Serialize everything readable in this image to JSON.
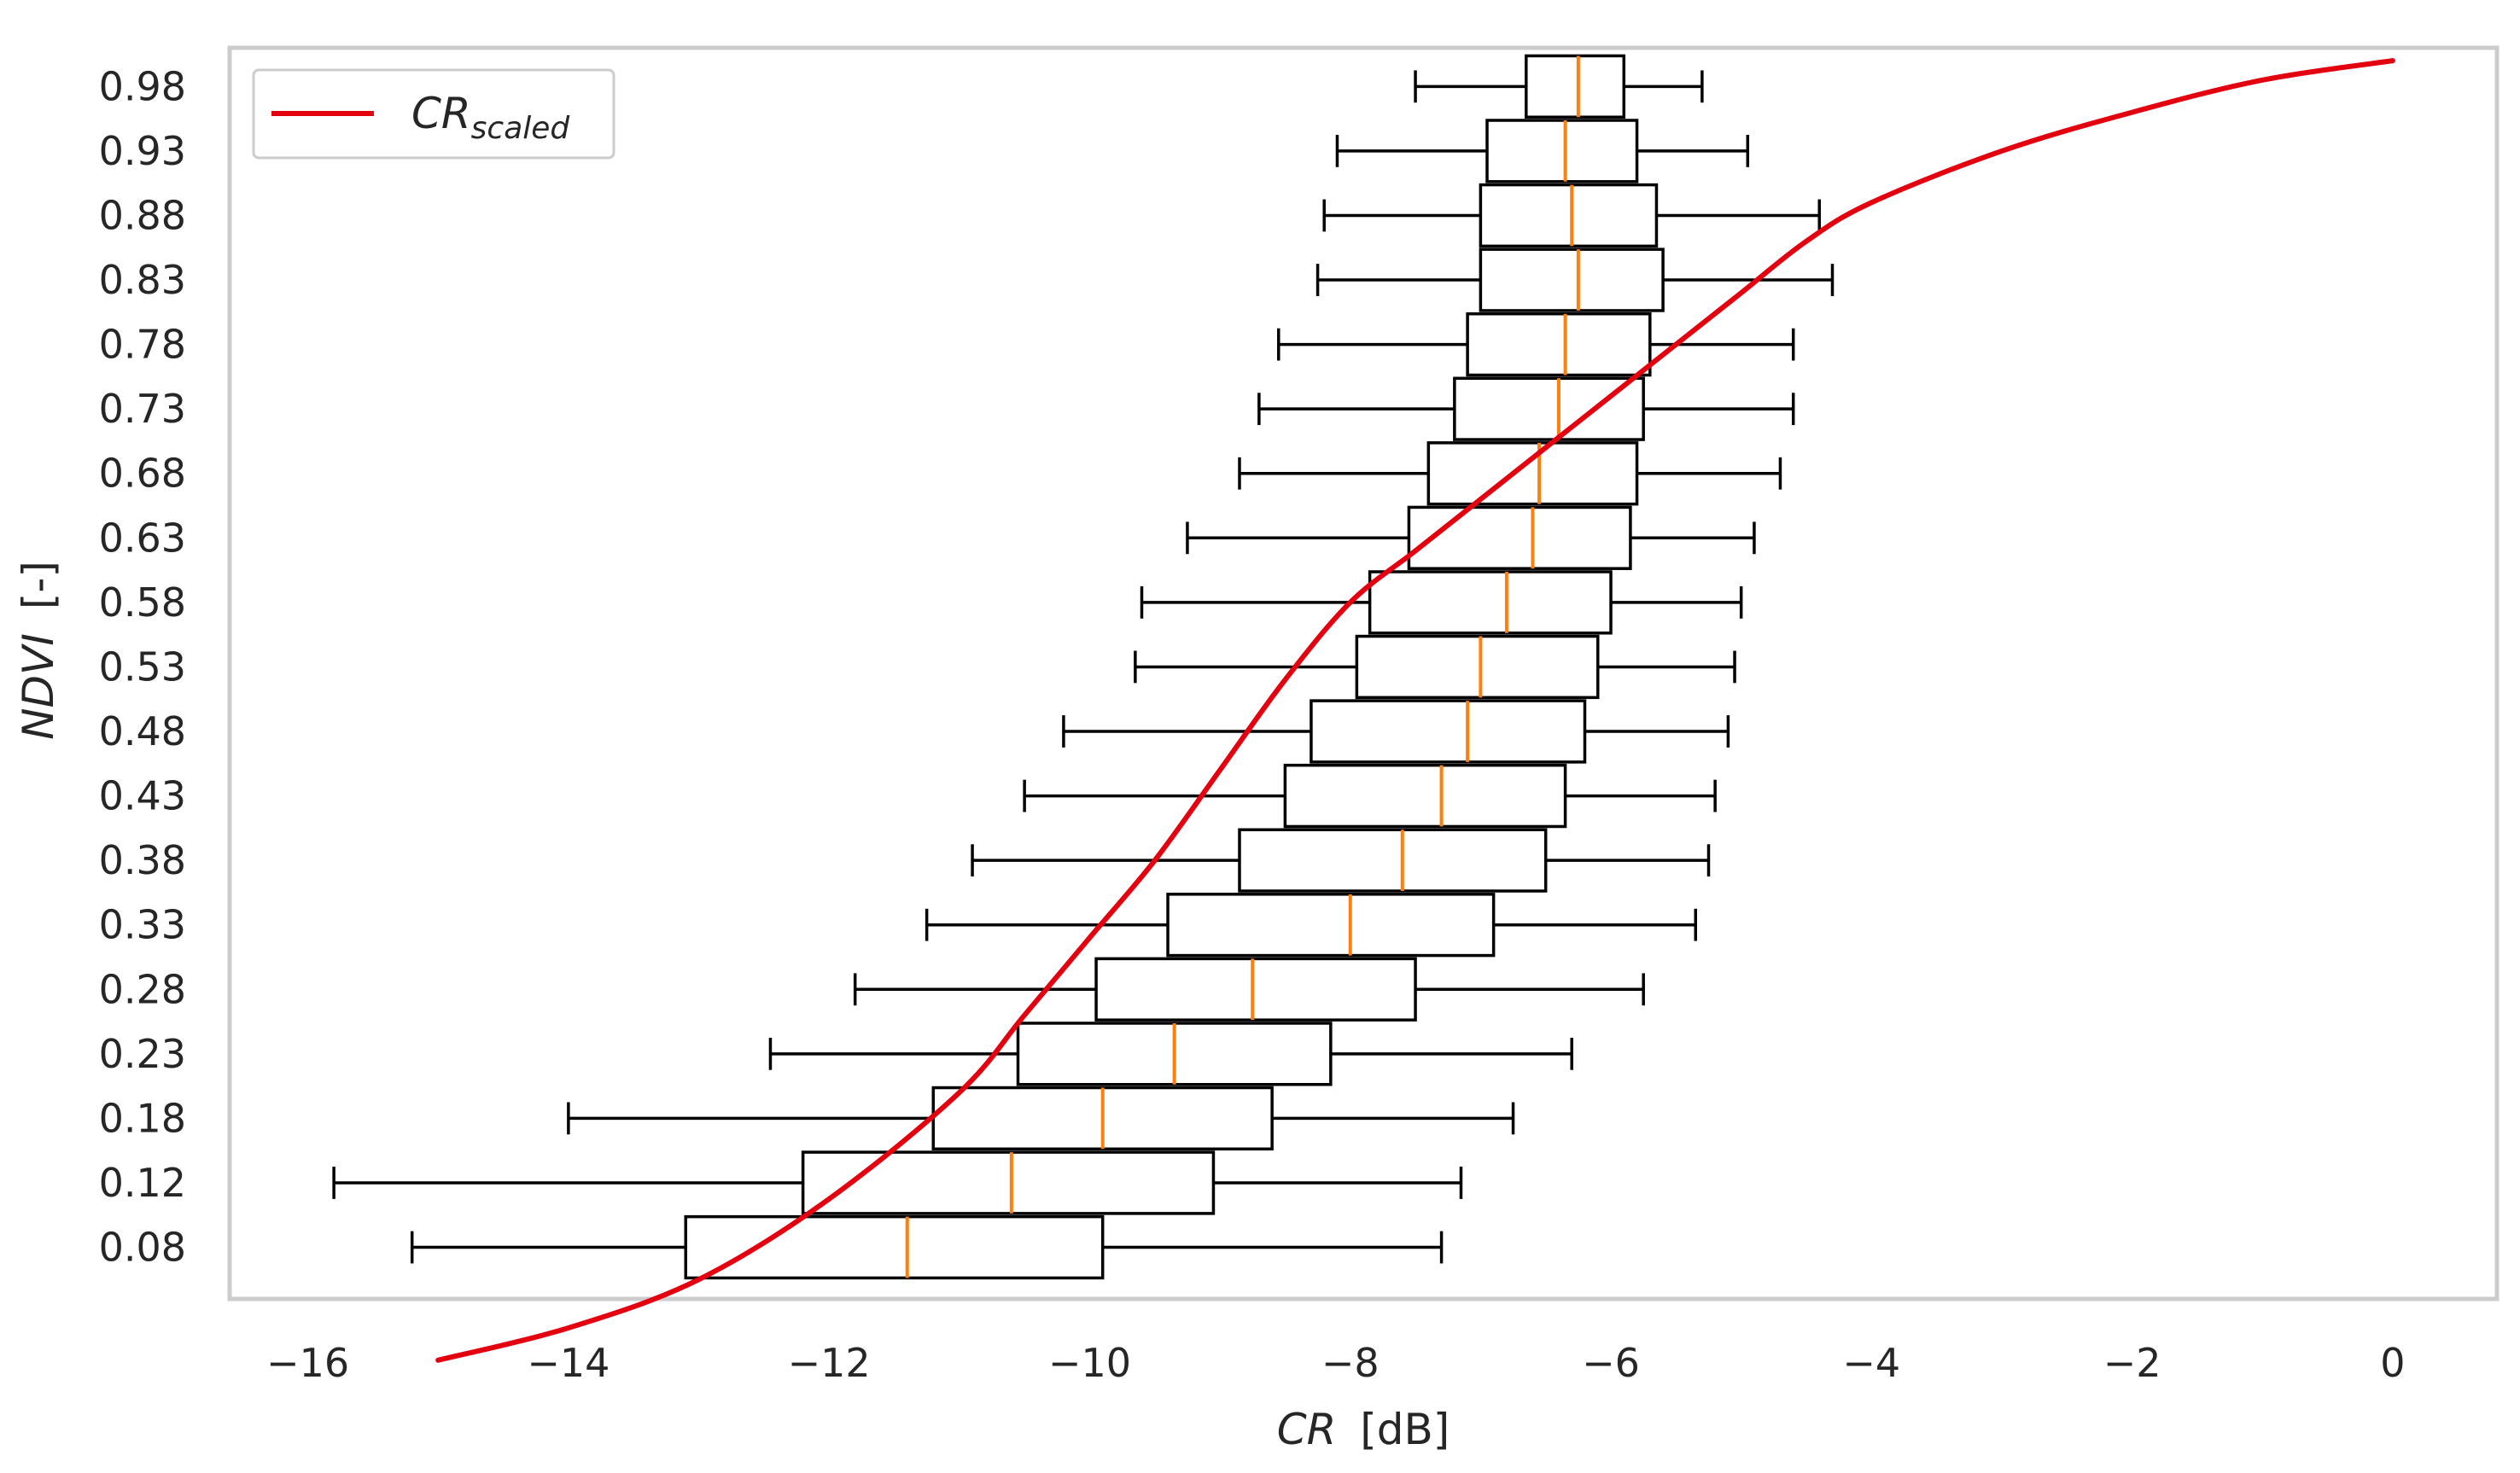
{
  "chart_data": {
    "type": "boxplot",
    "orientation": "horizontal",
    "xlabel": {
      "var": "CR",
      "unit": "[dB]"
    },
    "ylabel": {
      "var": "NDVI",
      "unit": "[-]"
    },
    "xlim": [
      -16.6,
      0.8
    ],
    "ylim": [
      -0.8,
      18.6
    ],
    "x_ticks": [
      {
        "value": -16,
        "label": "−16"
      },
      {
        "value": -14,
        "label": "−14"
      },
      {
        "value": -12,
        "label": "−12"
      },
      {
        "value": -10,
        "label": "−10"
      },
      {
        "value": -8,
        "label": "−8"
      },
      {
        "value": -6,
        "label": "−6"
      },
      {
        "value": -4,
        "label": "−4"
      },
      {
        "value": -2,
        "label": "−2"
      },
      {
        "value": 0,
        "label": "0"
      }
    ],
    "grid": false,
    "legend": {
      "position": "top-left",
      "entries": [
        {
          "name": "CR",
          "subscript": "scaled",
          "color": "#e3000f"
        }
      ]
    },
    "colors": {
      "box": "#000000",
      "median": "#ff7f0e",
      "curve": "#e3000f",
      "frame": "#cccccc"
    },
    "categories": [
      "0.08",
      "0.12",
      "0.18",
      "0.23",
      "0.28",
      "0.33",
      "0.38",
      "0.43",
      "0.48",
      "0.53",
      "0.58",
      "0.63",
      "0.68",
      "0.73",
      "0.78",
      "0.83",
      "0.88",
      "0.93",
      "0.98"
    ],
    "boxes": [
      {
        "whislo": -15.2,
        "q1": -13.1,
        "med": -11.4,
        "q3": -9.9,
        "whishi": -7.3
      },
      {
        "whislo": -15.8,
        "q1": -12.2,
        "med": -10.6,
        "q3": -9.05,
        "whishi": -7.15
      },
      {
        "whislo": -14.0,
        "q1": -11.2,
        "med": -9.9,
        "q3": -8.6,
        "whishi": -6.75
      },
      {
        "whislo": -12.45,
        "q1": -10.55,
        "med": -9.35,
        "q3": -8.15,
        "whishi": -6.3
      },
      {
        "whislo": -11.8,
        "q1": -9.95,
        "med": -8.75,
        "q3": -7.5,
        "whishi": -5.75
      },
      {
        "whislo": -11.25,
        "q1": -9.4,
        "med": -8.0,
        "q3": -6.9,
        "whishi": -5.35
      },
      {
        "whislo": -10.9,
        "q1": -8.85,
        "med": -7.6,
        "q3": -6.5,
        "whishi": -5.25
      },
      {
        "whislo": -10.5,
        "q1": -8.5,
        "med": -7.3,
        "q3": -6.35,
        "whishi": -5.2
      },
      {
        "whislo": -10.2,
        "q1": -8.3,
        "med": -7.1,
        "q3": -6.2,
        "whishi": -5.1
      },
      {
        "whislo": -9.65,
        "q1": -7.95,
        "med": -7.0,
        "q3": -6.1,
        "whishi": -5.05
      },
      {
        "whislo": -9.6,
        "q1": -7.85,
        "med": -6.8,
        "q3": -6.0,
        "whishi": -5.0
      },
      {
        "whislo": -9.25,
        "q1": -7.55,
        "med": -6.6,
        "q3": -5.85,
        "whishi": -4.9
      },
      {
        "whislo": -8.85,
        "q1": -7.4,
        "med": -6.55,
        "q3": -5.8,
        "whishi": -4.7
      },
      {
        "whislo": -8.7,
        "q1": -7.2,
        "med": -6.4,
        "q3": -5.75,
        "whishi": -4.6
      },
      {
        "whislo": -8.55,
        "q1": -7.1,
        "med": -6.35,
        "q3": -5.7,
        "whishi": -4.6
      },
      {
        "whislo": -8.25,
        "q1": -7.0,
        "med": -6.25,
        "q3": -5.6,
        "whishi": -4.3
      },
      {
        "whislo": -8.2,
        "q1": -7.0,
        "med": -6.3,
        "q3": -5.65,
        "whishi": -4.4
      },
      {
        "whislo": -8.1,
        "q1": -6.95,
        "med": -6.35,
        "q3": -5.8,
        "whishi": -4.95
      },
      {
        "whislo": -7.5,
        "q1": -6.65,
        "med": -6.25,
        "q3": -5.9,
        "whishi": -5.3
      }
    ],
    "curve": {
      "name": "CR_scaled",
      "x": [
        -15.0,
        -14.0,
        -13.0,
        -12.0,
        -11.0,
        -10.5,
        -10.0,
        -9.5,
        -9.0,
        -8.5,
        -8.0,
        -7.5,
        -7.0,
        -6.5,
        -6.0,
        -5.5,
        -5.0,
        -4.5,
        -4.0,
        -3.0,
        -2.0,
        -1.0,
        0.0
      ],
      "y": [
        0.01,
        0.03,
        0.06,
        0.11,
        0.2,
        0.26,
        0.32,
        0.38,
        0.45,
        0.52,
        0.58,
        0.62,
        0.66,
        0.7,
        0.74,
        0.78,
        0.82,
        0.86,
        0.89,
        0.93,
        0.96,
        0.985,
        1.0
      ]
    }
  }
}
